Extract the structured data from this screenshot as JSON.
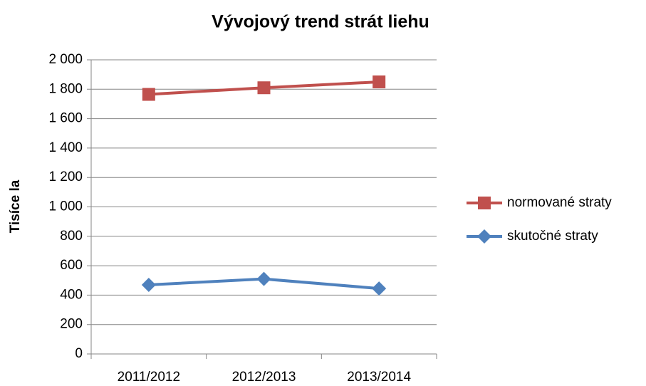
{
  "chart_data": {
    "type": "line",
    "title": "Vývojový trend strát liehu",
    "y_label": "Tisíce la",
    "categories": [
      "2011/2012",
      "2012/2013",
      "2013/2014"
    ],
    "series": [
      {
        "name": "normované straty",
        "color": "#c0504d",
        "marker": "square",
        "values": [
          1765,
          1810,
          1850
        ]
      },
      {
        "name": "skutočné straty",
        "color": "#4f81bd",
        "marker": "diamond",
        "values": [
          470,
          510,
          445
        ]
      }
    ],
    "ylim": [
      0,
      2000
    ],
    "yticks": [
      0,
      200,
      400,
      600,
      800,
      {
        "value": 1000,
        "label": "1 000"
      },
      {
        "value": 1200,
        "label": "1 200"
      },
      {
        "value": 1400,
        "label": "1 400"
      },
      {
        "value": 1600,
        "label": "1 600"
      },
      {
        "value": 1800,
        "label": "1 800"
      },
      {
        "value": 2000,
        "label": "2 000"
      }
    ],
    "grid": true,
    "legend": "right"
  }
}
